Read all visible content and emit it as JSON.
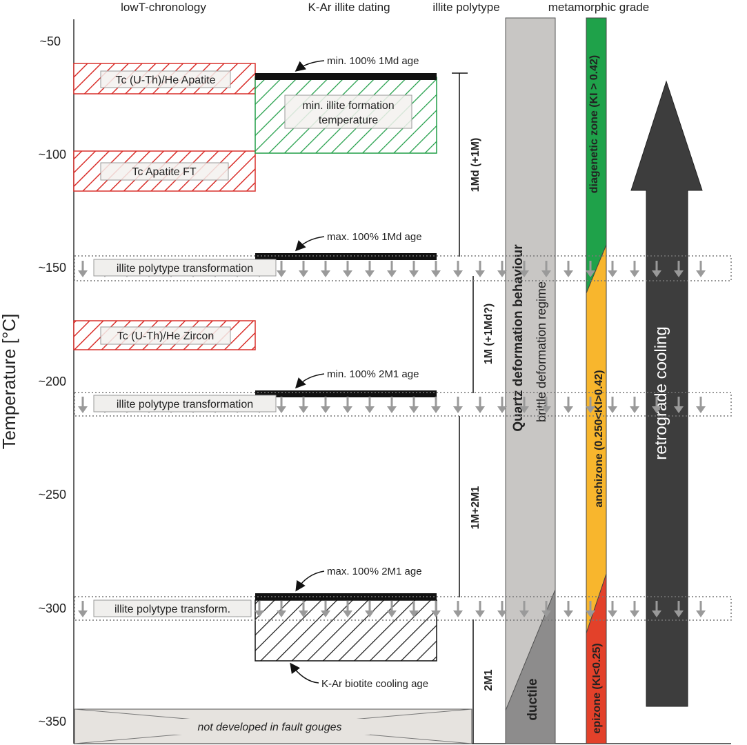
{
  "columns": {
    "lowt": "lowT-chronology",
    "kar": "K-Ar illite dating",
    "polytype": "illite polytype",
    "metamorphic": "metamorphic grade"
  },
  "axis": {
    "label": "Temperature [°C]",
    "ticks": [
      "~50",
      "~100",
      "~150",
      "~200",
      "~250",
      "~300",
      "~350"
    ]
  },
  "lowt_boxes": {
    "he_apatite": "Tc (U-Th)/He Apatite",
    "apatite_ft": "Tc Apatite FT",
    "he_zircon": "Tc (U-Th)/He Zircon"
  },
  "kar": {
    "min_formation": "min. illite formation",
    "min_formation_2": "temperature",
    "min_1md": "min. 100% 1Md age",
    "max_1md": "max. 100% 1Md age",
    "min_2m1": "min. 100% 2M1 age",
    "max_2m1": "max. 100% 2M1 age",
    "biotite": "K-Ar biotite cooling age"
  },
  "transformations": {
    "t150": "illite polytype transformation",
    "t210": "illite polytype transformation",
    "t300": "illite polytype transform."
  },
  "polytypes": {
    "p1": "1Md (+1M)",
    "p2": "1M (+1Md?)",
    "p3": "1M+2M1",
    "p4": "2M1"
  },
  "quartz": {
    "title": "Quartz deformation behaviour",
    "brittle": "brittle deformation regime",
    "ductile": "ductile"
  },
  "metamorphic": {
    "diagenetic": "diagenetic zone (KI > 0.42)",
    "anchizone": "anchizone (0.250<KI>0.42)",
    "epizone": "epizone (KI<0.25)"
  },
  "retrograde": "retrograde cooling",
  "fault": "not developed in fault gouges",
  "colors": {
    "red_hatch": "#d9302c",
    "green_hatch": "#1f9d46",
    "diagenetic": "#1fa24a",
    "anchizone": "#f8b62d",
    "epizone": "#e3412a",
    "quartz_grey": "#c8c6c4",
    "ductile_grey": "#8d8c8c",
    "arrow": "#3d3d3d",
    "fault_fill": "#e6e3df"
  }
}
